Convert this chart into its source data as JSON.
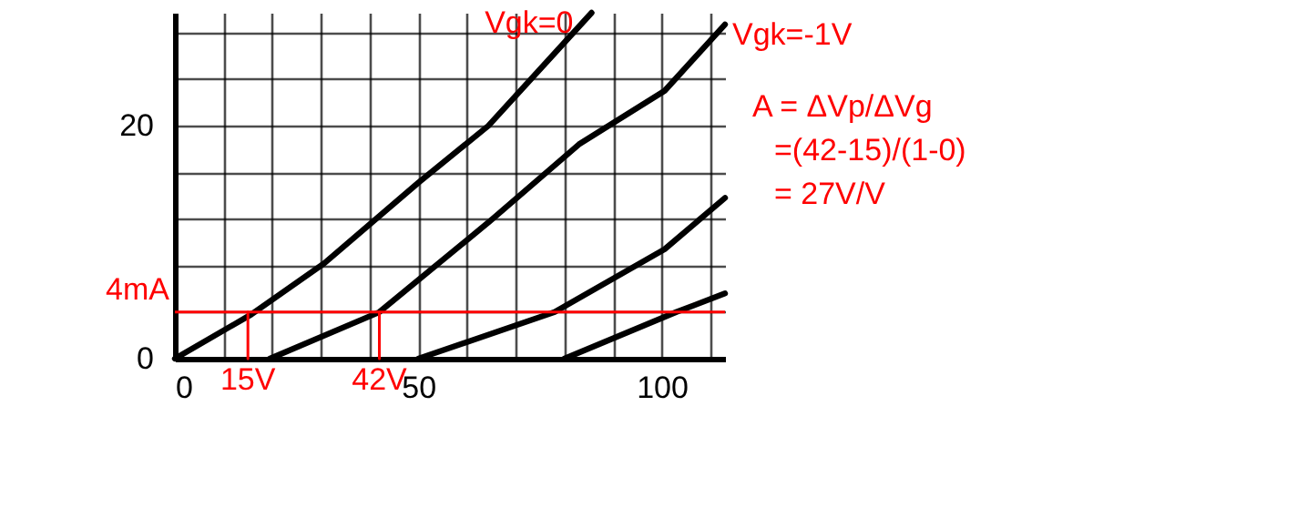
{
  "chart_data": {
    "type": "line",
    "xlim": [
      0,
      113
    ],
    "ylim": [
      0,
      29.7
    ],
    "xticks": [
      0,
      {
        "value": 10,
        "label": null
      },
      {
        "value": 20,
        "label": null
      },
      {
        "value": 30,
        "label": null
      },
      {
        "value": 40,
        "label": null
      },
      50,
      {
        "value": 60,
        "label": null
      },
      {
        "value": 70,
        "label": null
      },
      {
        "value": 80,
        "label": null
      },
      {
        "value": 90,
        "label": null
      },
      100,
      {
        "value": 110,
        "label": null
      }
    ],
    "yticks": [
      0,
      {
        "value": 4,
        "label": null
      },
      {
        "value": 8,
        "label": null
      },
      {
        "value": 12,
        "label": null
      },
      {
        "value": 16,
        "label": null
      },
      20,
      {
        "value": 24,
        "label": null
      },
      {
        "value": 28,
        "label": null
      }
    ],
    "grid": true,
    "marker": "none",
    "line_style": "solid",
    "series": [
      {
        "name": "Vgk=0",
        "color": "#000000",
        "x": [
          0,
          15.7,
          30.7,
          50,
          64.4,
          85.6
        ],
        "values": [
          0,
          3.8,
          8.2,
          15.1,
          20,
          29.7
        ]
      },
      {
        "name": "Vgk=-1V",
        "color": "#000000",
        "x": [
          19.5,
          42,
          64.4,
          83,
          100.6,
          113
        ],
        "values": [
          0,
          4,
          11.7,
          18.4,
          23,
          28.7
        ]
      },
      {
        "color": "#000000",
        "x": [
          50,
          78,
          100.6,
          113
        ],
        "values": [
          0,
          4,
          9.4,
          13.8
        ]
      },
      {
        "color": "#000000",
        "x": [
          80,
          103,
          113
        ],
        "values": [
          0,
          4,
          5.6
        ]
      },
      {
        "color": "#ff0000",
        "x": [
          15,
          15
        ],
        "values": [
          0,
          4
        ]
      },
      {
        "color": "#ff0000",
        "x": [
          42,
          42
        ],
        "values": [
          0,
          4
        ]
      }
    ],
    "ref_lines": [
      {
        "axis": "y",
        "value": 4,
        "label": "4mA",
        "color": "#ff0000"
      }
    ],
    "annotations": [
      {
        "text": "15V",
        "x": 15,
        "y": 0
      },
      {
        "text": "42V",
        "x": 42,
        "y": 0
      },
      "A = ΔVp/ΔVg",
      "=(42-15)/(1-0)",
      "= 27V/V"
    ]
  }
}
